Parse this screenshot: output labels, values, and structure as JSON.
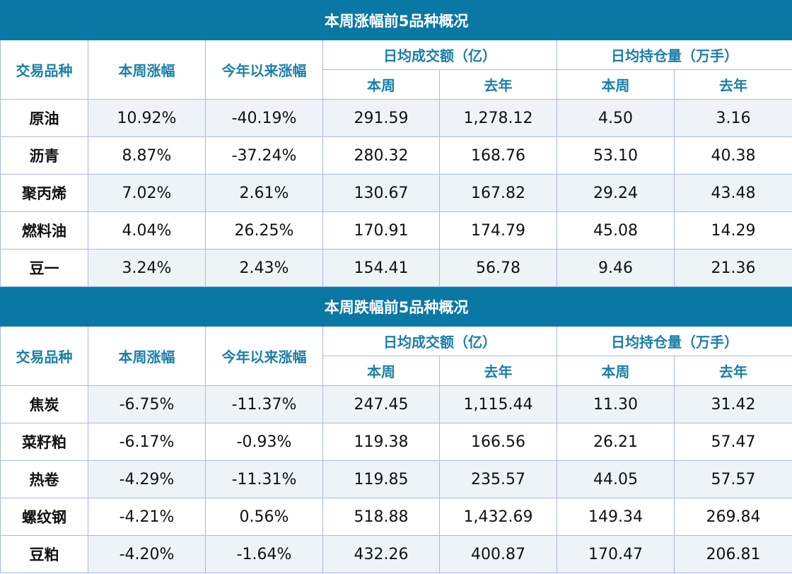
{
  "headers": {
    "variety": "交易品种",
    "week_change": "本周涨幅",
    "ytd_change": "今年以来涨幅",
    "avg_volume": "日均成交额（亿）",
    "avg_oi": "日均持仓量（万手）",
    "this_week": "本周",
    "last_year": "去年"
  },
  "sections": [
    {
      "title": "本周涨幅前5品种概况",
      "rows": [
        [
          "原油",
          "10.92%",
          "-40.19%",
          "291.59",
          "1,278.12",
          "4.50",
          "3.16"
        ],
        [
          "沥青",
          "8.87%",
          "-37.24%",
          "280.32",
          "168.76",
          "53.10",
          "40.38"
        ],
        [
          "聚丙烯",
          "7.02%",
          "2.61%",
          "130.67",
          "167.82",
          "29.24",
          "43.48"
        ],
        [
          "燃料油",
          "4.04%",
          "26.25%",
          "170.91",
          "174.79",
          "45.08",
          "14.29"
        ],
        [
          "豆一",
          "3.24%",
          "2.43%",
          "154.41",
          "56.78",
          "9.46",
          "21.36"
        ]
      ]
    },
    {
      "title": "本周跌幅前5品种概况",
      "rows": [
        [
          "焦炭",
          "-6.75%",
          "-11.37%",
          "247.45",
          "1,115.44",
          "11.30",
          "31.42"
        ],
        [
          "菜籽粕",
          "-6.17%",
          "-0.93%",
          "119.38",
          "166.56",
          "26.21",
          "57.47"
        ],
        [
          "热卷",
          "-4.29%",
          "-11.31%",
          "119.85",
          "235.57",
          "44.05",
          "57.57"
        ],
        [
          "螺纹钢",
          "-4.21%",
          "0.56%",
          "518.88",
          "1,432.69",
          "149.34",
          "269.84"
        ],
        [
          "豆粕",
          "-4.20%",
          "-1.64%",
          "432.26",
          "400.87",
          "170.47",
          "206.81"
        ]
      ]
    }
  ]
}
